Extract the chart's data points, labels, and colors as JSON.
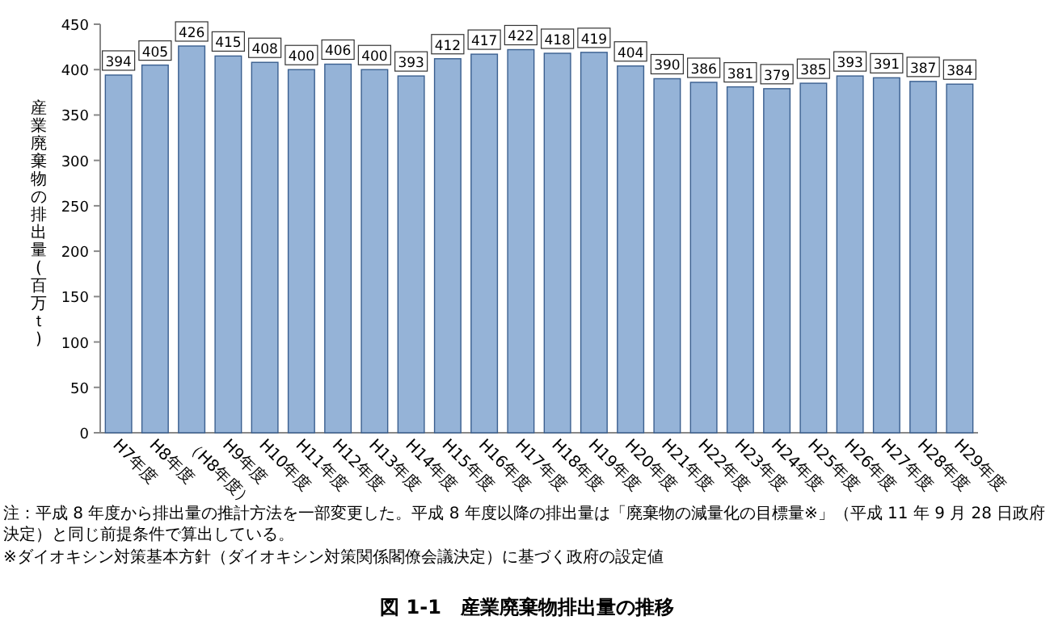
{
  "chart_data": {
    "type": "bar",
    "title": "図 1-1　産業廃棄物排出量の推移",
    "ylabel": "産業廃棄物の排出量(百万ｔ)",
    "categories": [
      "H7年度",
      "H8年度",
      "（H8年度）",
      "H9年度",
      "H10年度",
      "H11年度",
      "H12年度",
      "H13年度",
      "H14年度",
      "H15年度",
      "H16年度",
      "H17年度",
      "H18年度",
      "H19年度",
      "H20年度",
      "H21年度",
      "H22年度",
      "H23年度",
      "H24年度",
      "H25年度",
      "H26年度",
      "H27年度",
      "H28年度",
      "H29年度"
    ],
    "values": [
      394,
      405,
      426,
      415,
      408,
      400,
      406,
      400,
      393,
      412,
      417,
      422,
      418,
      419,
      404,
      390,
      386,
      381,
      379,
      385,
      393,
      391,
      387,
      384
    ],
    "color": "#95b3d7",
    "data_labels": true,
    "grid": false,
    "ylim": [
      0,
      450
    ],
    "yticks": [
      0,
      50,
      100,
      150,
      200,
      250,
      300,
      350,
      400,
      450
    ],
    "annotations": [
      "注：平成 8 年度から排出量の推計方法を一部変更した。平成 8 年度以降の排出量は「廃棄物の減量化の目標量※」（平成 11 年 9 月 28 日政府決定）と同じ前提条件で算出している。",
      "※ダイオキシン対策基本方針（ダイオキシン対策関係閣僚会議決定）に基づく政府の設定値"
    ]
  }
}
